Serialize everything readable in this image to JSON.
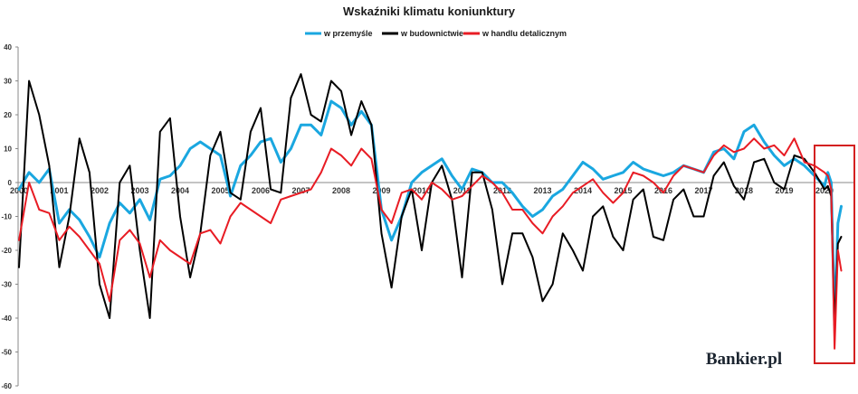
{
  "chart_data": {
    "type": "line",
    "title": "Wskaźniki klimatu koniunktury",
    "xlabel": "",
    "ylabel": "",
    "ylim": [
      -60,
      40
    ],
    "y_ticks": [
      "40",
      "30",
      "20",
      "10",
      "0",
      "-10",
      "-20",
      "-30",
      "-40",
      "-50",
      "-60"
    ],
    "x_ticks": [
      "2000",
      "2001",
      "2002",
      "2003",
      "2004",
      "2005",
      "2006",
      "2007",
      "2008",
      "2009",
      "2010",
      "2011",
      "2012",
      "2013",
      "2014",
      "2015",
      "2016",
      "2017",
      "2018",
      "2019",
      "2020"
    ],
    "x_range": [
      "2000-01",
      "2020-06"
    ],
    "grid": false,
    "legend_position": "top-center",
    "series": [
      {
        "name": "w przemyśle",
        "color": "#1aa7e0",
        "points": [
          [
            "2000-01",
            -2
          ],
          [
            "2000-04",
            3
          ],
          [
            "2000-07",
            0
          ],
          [
            "2000-10",
            4
          ],
          [
            "2001-01",
            -12
          ],
          [
            "2001-04",
            -8
          ],
          [
            "2001-07",
            -11
          ],
          [
            "2001-10",
            -16
          ],
          [
            "2002-01",
            -22
          ],
          [
            "2002-04",
            -12
          ],
          [
            "2002-07",
            -6
          ],
          [
            "2002-10",
            -9
          ],
          [
            "2003-01",
            -5
          ],
          [
            "2003-04",
            -11
          ],
          [
            "2003-07",
            1
          ],
          [
            "2003-10",
            2
          ],
          [
            "2004-01",
            5
          ],
          [
            "2004-04",
            10
          ],
          [
            "2004-07",
            12
          ],
          [
            "2004-10",
            10
          ],
          [
            "2005-01",
            8
          ],
          [
            "2005-04",
            -4
          ],
          [
            "2005-07",
            5
          ],
          [
            "2005-10",
            8
          ],
          [
            "2006-01",
            12
          ],
          [
            "2006-04",
            13
          ],
          [
            "2006-07",
            6
          ],
          [
            "2006-10",
            10
          ],
          [
            "2007-01",
            17
          ],
          [
            "2007-04",
            17
          ],
          [
            "2007-07",
            14
          ],
          [
            "2007-10",
            24
          ],
          [
            "2008-01",
            22
          ],
          [
            "2008-04",
            17
          ],
          [
            "2008-07",
            21
          ],
          [
            "2008-10",
            17
          ],
          [
            "2009-01",
            -8
          ],
          [
            "2009-04",
            -17
          ],
          [
            "2009-07",
            -10
          ],
          [
            "2009-10",
            0
          ],
          [
            "2010-01",
            3
          ],
          [
            "2010-04",
            5
          ],
          [
            "2010-07",
            7
          ],
          [
            "2010-10",
            2
          ],
          [
            "2011-01",
            -2
          ],
          [
            "2011-04",
            4
          ],
          [
            "2011-07",
            3
          ],
          [
            "2011-10",
            0
          ],
          [
            "2012-01",
            0
          ],
          [
            "2012-04",
            -3
          ],
          [
            "2012-07",
            -7
          ],
          [
            "2012-10",
            -10
          ],
          [
            "2013-01",
            -8
          ],
          [
            "2013-04",
            -4
          ],
          [
            "2013-07",
            -2
          ],
          [
            "2013-10",
            2
          ],
          [
            "2014-01",
            6
          ],
          [
            "2014-04",
            4
          ],
          [
            "2014-07",
            1
          ],
          [
            "2014-10",
            2
          ],
          [
            "2015-01",
            3
          ],
          [
            "2015-04",
            6
          ],
          [
            "2015-07",
            4
          ],
          [
            "2015-10",
            3
          ],
          [
            "2016-01",
            2
          ],
          [
            "2016-04",
            3
          ],
          [
            "2016-07",
            5
          ],
          [
            "2016-10",
            4
          ],
          [
            "2017-01",
            3
          ],
          [
            "2017-04",
            9
          ],
          [
            "2017-07",
            10
          ],
          [
            "2017-10",
            7
          ],
          [
            "2018-01",
            15
          ],
          [
            "2018-04",
            17
          ],
          [
            "2018-07",
            12
          ],
          [
            "2018-10",
            8
          ],
          [
            "2019-01",
            5
          ],
          [
            "2019-04",
            7
          ],
          [
            "2019-07",
            5
          ],
          [
            "2019-10",
            2
          ],
          [
            "2020-01",
            -1
          ],
          [
            "2020-02",
            3
          ],
          [
            "2020-03",
            0
          ],
          [
            "2020-04",
            -42
          ],
          [
            "2020-05",
            -12
          ],
          [
            "2020-06",
            -7
          ]
        ]
      },
      {
        "name": "w budownictwie",
        "color": "#000000",
        "points": [
          [
            "2000-01",
            -25
          ],
          [
            "2000-04",
            30
          ],
          [
            "2000-07",
            20
          ],
          [
            "2000-10",
            5
          ],
          [
            "2001-01",
            -25
          ],
          [
            "2001-04",
            -10
          ],
          [
            "2001-07",
            13
          ],
          [
            "2001-10",
            3
          ],
          [
            "2002-01",
            -30
          ],
          [
            "2002-04",
            -40
          ],
          [
            "2002-07",
            0
          ],
          [
            "2002-10",
            5
          ],
          [
            "2003-01",
            -20
          ],
          [
            "2003-04",
            -40
          ],
          [
            "2003-07",
            15
          ],
          [
            "2003-10",
            19
          ],
          [
            "2004-01",
            -10
          ],
          [
            "2004-04",
            -28
          ],
          [
            "2004-07",
            -15
          ],
          [
            "2004-10",
            8
          ],
          [
            "2005-01",
            15
          ],
          [
            "2005-04",
            -3
          ],
          [
            "2005-07",
            -5
          ],
          [
            "2005-10",
            15
          ],
          [
            "2006-01",
            22
          ],
          [
            "2006-04",
            -2
          ],
          [
            "2006-07",
            -3
          ],
          [
            "2006-10",
            25
          ],
          [
            "2007-01",
            32
          ],
          [
            "2007-04",
            20
          ],
          [
            "2007-07",
            18
          ],
          [
            "2007-10",
            30
          ],
          [
            "2008-01",
            27
          ],
          [
            "2008-04",
            14
          ],
          [
            "2008-07",
            24
          ],
          [
            "2008-10",
            17
          ],
          [
            "2009-01",
            -15
          ],
          [
            "2009-04",
            -31
          ],
          [
            "2009-07",
            -10
          ],
          [
            "2009-10",
            -2
          ],
          [
            "2010-01",
            -20
          ],
          [
            "2010-04",
            0
          ],
          [
            "2010-07",
            5
          ],
          [
            "2010-10",
            -5
          ],
          [
            "2011-01",
            -28
          ],
          [
            "2011-04",
            3
          ],
          [
            "2011-07",
            3
          ],
          [
            "2011-10",
            -8
          ],
          [
            "2012-01",
            -30
          ],
          [
            "2012-04",
            -15
          ],
          [
            "2012-07",
            -15
          ],
          [
            "2012-10",
            -22
          ],
          [
            "2013-01",
            -35
          ],
          [
            "2013-04",
            -30
          ],
          [
            "2013-07",
            -15
          ],
          [
            "2013-10",
            -20
          ],
          [
            "2014-01",
            -26
          ],
          [
            "2014-04",
            -10
          ],
          [
            "2014-07",
            -7
          ],
          [
            "2014-10",
            -16
          ],
          [
            "2015-01",
            -20
          ],
          [
            "2015-04",
            -5
          ],
          [
            "2015-07",
            -2
          ],
          [
            "2015-10",
            -16
          ],
          [
            "2016-01",
            -17
          ],
          [
            "2016-04",
            -5
          ],
          [
            "2016-07",
            -2
          ],
          [
            "2016-10",
            -10
          ],
          [
            "2017-01",
            -10
          ],
          [
            "2017-04",
            2
          ],
          [
            "2017-07",
            6
          ],
          [
            "2017-10",
            -1
          ],
          [
            "2018-01",
            -5
          ],
          [
            "2018-04",
            6
          ],
          [
            "2018-07",
            7
          ],
          [
            "2018-10",
            0
          ],
          [
            "2019-01",
            -2
          ],
          [
            "2019-04",
            8
          ],
          [
            "2019-07",
            7
          ],
          [
            "2019-10",
            3
          ],
          [
            "2020-01",
            -2
          ],
          [
            "2020-02",
            -1
          ],
          [
            "2020-03",
            -4
          ],
          [
            "2020-04",
            -43
          ],
          [
            "2020-05",
            -18
          ],
          [
            "2020-06",
            -16
          ]
        ]
      },
      {
        "name": "w handlu detalicznym",
        "color": "#e81c24",
        "points": [
          [
            "2000-01",
            -17
          ],
          [
            "2000-04",
            0
          ],
          [
            "2000-07",
            -8
          ],
          [
            "2000-10",
            -9
          ],
          [
            "2001-01",
            -17
          ],
          [
            "2001-04",
            -13
          ],
          [
            "2001-07",
            -16
          ],
          [
            "2001-10",
            -20
          ],
          [
            "2002-01",
            -24
          ],
          [
            "2002-04",
            -35
          ],
          [
            "2002-07",
            -17
          ],
          [
            "2002-10",
            -14
          ],
          [
            "2003-01",
            -18
          ],
          [
            "2003-04",
            -28
          ],
          [
            "2003-07",
            -17
          ],
          [
            "2003-10",
            -20
          ],
          [
            "2004-01",
            -22
          ],
          [
            "2004-04",
            -24
          ],
          [
            "2004-07",
            -15
          ],
          [
            "2004-10",
            -14
          ],
          [
            "2005-01",
            -18
          ],
          [
            "2005-04",
            -10
          ],
          [
            "2005-07",
            -6
          ],
          [
            "2005-10",
            -8
          ],
          [
            "2006-01",
            -10
          ],
          [
            "2006-04",
            -12
          ],
          [
            "2006-07",
            -5
          ],
          [
            "2006-10",
            -4
          ],
          [
            "2007-01",
            -3
          ],
          [
            "2007-04",
            -2
          ],
          [
            "2007-07",
            3
          ],
          [
            "2007-10",
            10
          ],
          [
            "2008-01",
            8
          ],
          [
            "2008-04",
            5
          ],
          [
            "2008-07",
            10
          ],
          [
            "2008-10",
            7
          ],
          [
            "2009-01",
            -8
          ],
          [
            "2009-04",
            -12
          ],
          [
            "2009-07",
            -3
          ],
          [
            "2009-10",
            -2
          ],
          [
            "2010-01",
            -5
          ],
          [
            "2010-04",
            0
          ],
          [
            "2010-07",
            -2
          ],
          [
            "2010-10",
            -5
          ],
          [
            "2011-01",
            -4
          ],
          [
            "2011-04",
            -1
          ],
          [
            "2011-07",
            2
          ],
          [
            "2011-10",
            0
          ],
          [
            "2012-01",
            -3
          ],
          [
            "2012-04",
            -8
          ],
          [
            "2012-07",
            -8
          ],
          [
            "2012-10",
            -12
          ],
          [
            "2013-01",
            -15
          ],
          [
            "2013-04",
            -10
          ],
          [
            "2013-07",
            -7
          ],
          [
            "2013-10",
            -3
          ],
          [
            "2014-01",
            -1
          ],
          [
            "2014-04",
            1
          ],
          [
            "2014-07",
            -3
          ],
          [
            "2014-10",
            -6
          ],
          [
            "2015-01",
            -3
          ],
          [
            "2015-04",
            3
          ],
          [
            "2015-07",
            2
          ],
          [
            "2015-10",
            0
          ],
          [
            "2016-01",
            -3
          ],
          [
            "2016-04",
            2
          ],
          [
            "2016-07",
            5
          ],
          [
            "2016-10",
            4
          ],
          [
            "2017-01",
            3
          ],
          [
            "2017-04",
            8
          ],
          [
            "2017-07",
            11
          ],
          [
            "2017-10",
            9
          ],
          [
            "2018-01",
            10
          ],
          [
            "2018-04",
            13
          ],
          [
            "2018-07",
            10
          ],
          [
            "2018-10",
            11
          ],
          [
            "2019-01",
            8
          ],
          [
            "2019-04",
            13
          ],
          [
            "2019-07",
            6
          ],
          [
            "2019-10",
            5
          ],
          [
            "2020-01",
            3
          ],
          [
            "2020-02",
            2
          ],
          [
            "2020-03",
            -2
          ],
          [
            "2020-04",
            -49
          ],
          [
            "2020-05",
            -20
          ],
          [
            "2020-06",
            -26
          ]
        ]
      }
    ],
    "highlight": {
      "from": "2020-01",
      "to": "2020-06",
      "color": "#d42020"
    },
    "watermark": "Bankier.pl"
  }
}
